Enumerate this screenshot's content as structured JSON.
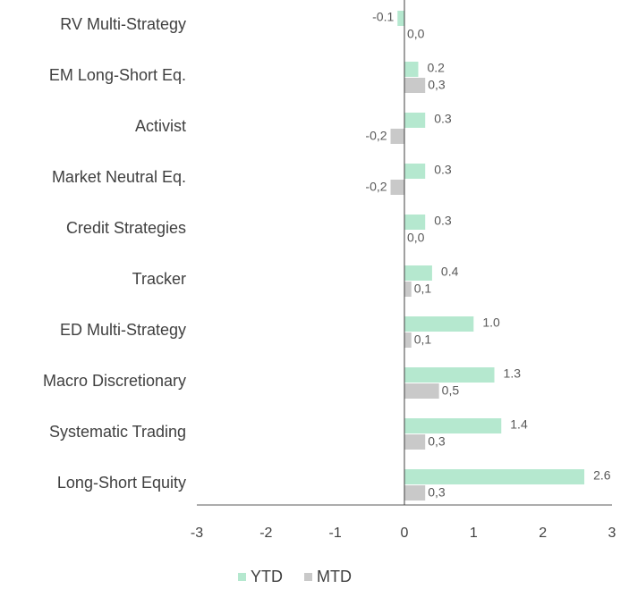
{
  "chart_data": {
    "type": "barh",
    "categories": [
      "RV Multi-Strategy",
      "EM Long-Short Eq.",
      "Activist",
      "Market Neutral Eq.",
      "Credit Strategies",
      "Tracker",
      "ED Multi-Strategy",
      "Macro Discretionary",
      "Systematic Trading",
      "Long-Short Equity"
    ],
    "series": [
      {
        "name": "YTD",
        "color": "#b5e8cf",
        "values": [
          -0.1,
          0.2,
          0.3,
          0.3,
          0.3,
          0.4,
          1.0,
          1.3,
          1.4,
          2.6
        ],
        "value_labels": [
          "-0.1",
          "0.2",
          "0.3",
          "0.3",
          "0.3",
          "0.4",
          "1.0",
          "1.3",
          "1.4",
          "2.6"
        ]
      },
      {
        "name": "MTD",
        "color": "#c9c9c9",
        "values": [
          0.0,
          0.3,
          -0.2,
          -0.2,
          0.0,
          0.1,
          0.1,
          0.5,
          0.3,
          0.3
        ],
        "value_labels": [
          "0,0",
          "0,3",
          "-0,2",
          "-0,2",
          "0,0",
          "0,1",
          "0,1",
          "0,5",
          "0,3",
          "0,3"
        ]
      }
    ],
    "xlim": [
      -3,
      3
    ],
    "xticks": [
      -3,
      -2,
      -1,
      0,
      1,
      2,
      3
    ],
    "legend": "bottom"
  }
}
